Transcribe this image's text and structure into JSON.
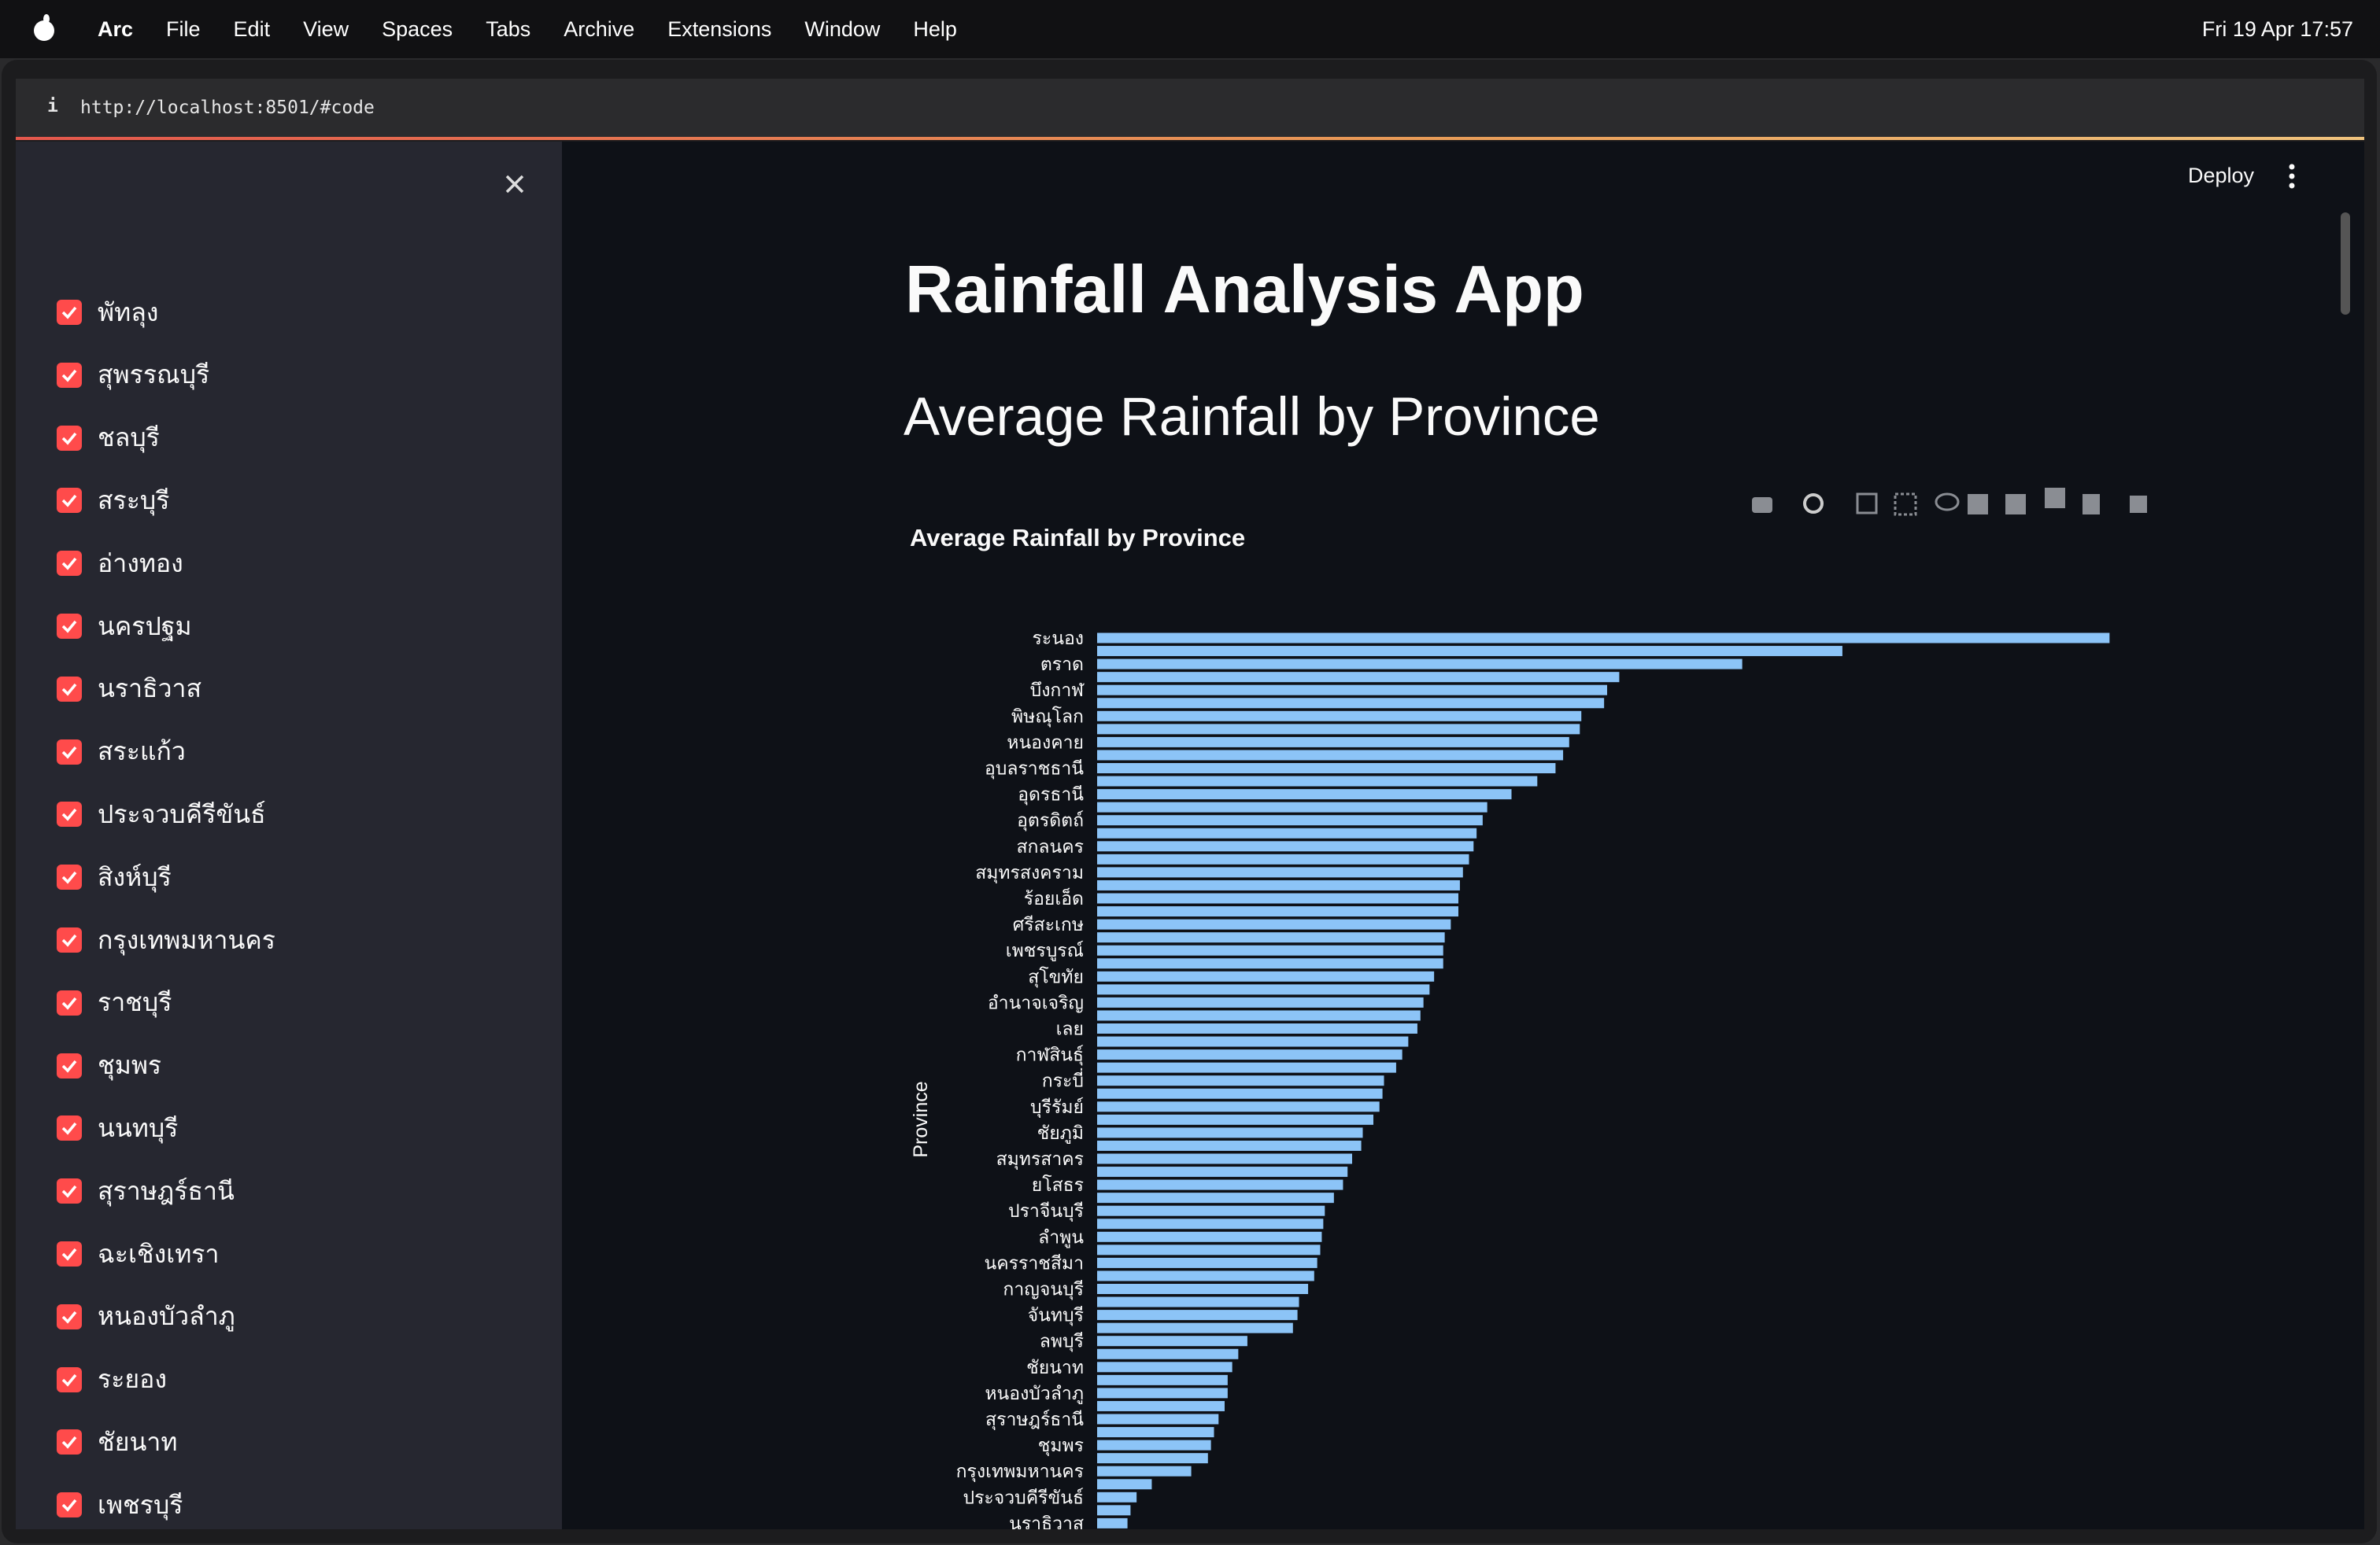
{
  "menubar": {
    "app": "Arc",
    "items": [
      "File",
      "Edit",
      "View",
      "Spaces",
      "Tabs",
      "Archive",
      "Extensions",
      "Window",
      "Help"
    ],
    "clock": "Fri 19 Apr 17:57"
  },
  "browser": {
    "url": "http://localhost:8501/#code"
  },
  "header": {
    "deploy": "Deploy"
  },
  "sidebar": {
    "items": [
      "พัทลุง",
      "สุพรรณบุรี",
      "ชลบุรี",
      "สระบุรี",
      "อ่างทอง",
      "นครปฐม",
      "นราธิวาส",
      "สระแก้ว",
      "ประจวบคีรีขันธ์",
      "สิงห์บุรี",
      "กรุงเทพมหานคร",
      "ราชบุรี",
      "ชุมพร",
      "นนทบุรี",
      "สุราษฎร์ธานี",
      "ฉะเชิงเทรา",
      "หนองบัวลำภู",
      "ระยอง",
      "ชัยนาท",
      "เพชรบุรี"
    ]
  },
  "app": {
    "title": "Rainfall Analysis App",
    "subheader": "Average Rainfall by Province"
  },
  "chart_data": {
    "type": "bar",
    "orientation": "horizontal",
    "title": "Average Rainfall by Province",
    "y_label": "Province",
    "color": "#8cc4f7",
    "xlim": [
      0,
      700
    ],
    "categories": [
      "ระนอง",
      null,
      "ตราด",
      null,
      "บึงกาฬ",
      null,
      "พิษณุโลก",
      null,
      "หนองคาย",
      null,
      "อุบลราชธานี",
      null,
      "อุดรธานี",
      null,
      "อุตรดิตถ์",
      null,
      "สกลนคร",
      null,
      "สมุทรสงคราม",
      null,
      "ร้อยเอ็ด",
      null,
      "ศรีสะเกษ",
      null,
      "เพชรบูรณ์",
      null,
      "สุโขทัย",
      null,
      "อำนาจเจริญ",
      null,
      "เลย",
      null,
      "กาฬสินธุ์",
      null,
      "กระบี่",
      null,
      "บุรีรัมย์",
      null,
      "ชัยภูมิ",
      null,
      "สมุทรสาคร",
      null,
      "ยโสธร",
      null,
      "ปราจีนบุรี",
      null,
      "ลำพูน",
      null,
      "นครราชสีมา",
      null,
      "กาญจนบุรี",
      null,
      "จันทบุรี",
      null,
      "ลพบุรี",
      null,
      "ชัยนาท",
      null,
      "หนองบัวลำภู",
      null,
      "สุราษฎร์ธานี",
      null,
      "ชุมพร",
      null,
      "กรุงเทพมหานคร",
      null,
      "ประจวบคีรีขันธ์",
      null,
      "นราธิวาส"
    ],
    "values": [
      667,
      491,
      425,
      344,
      336,
      334,
      319,
      318,
      311,
      307,
      302,
      290,
      273,
      257,
      254,
      250,
      248,
      245,
      241,
      239,
      238,
      238,
      233,
      229,
      228,
      228,
      222,
      219,
      215,
      213,
      211,
      205,
      201,
      197,
      189,
      188,
      186,
      182,
      175,
      174,
      168,
      165,
      162,
      156,
      150,
      149,
      148,
      147,
      145,
      143,
      139,
      133,
      132,
      129,
      99,
      93,
      89,
      86,
      86,
      84,
      80,
      77,
      75,
      73,
      62,
      36,
      26,
      22,
      20
    ]
  }
}
